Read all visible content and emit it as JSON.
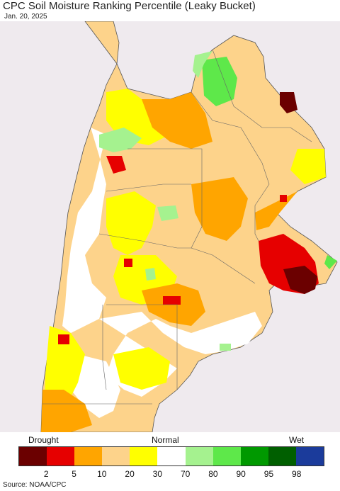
{
  "header": {
    "title": "CPC Soil Moisture Ranking Percentile (Leaky Bucket)",
    "date": "Jan. 20, 2025"
  },
  "legend": {
    "left_label": "Drought",
    "center_label": "Normal",
    "right_label": "Wet",
    "colors": [
      "#6b0000",
      "#e60000",
      "#ffa500",
      "#fdd38b",
      "#ffff00",
      "#ffffff",
      "#a5f28f",
      "#5ee84a",
      "#009900",
      "#005f00",
      "#1b3b9b"
    ],
    "ticks": [
      "2",
      "5",
      "10",
      "20",
      "30",
      "70",
      "80",
      "90",
      "95",
      "98"
    ]
  },
  "map": {
    "background_color": "#efeaee",
    "ocean_color": "#efeaee"
  },
  "footer": {
    "source": "Source: NOAA/CPC"
  }
}
